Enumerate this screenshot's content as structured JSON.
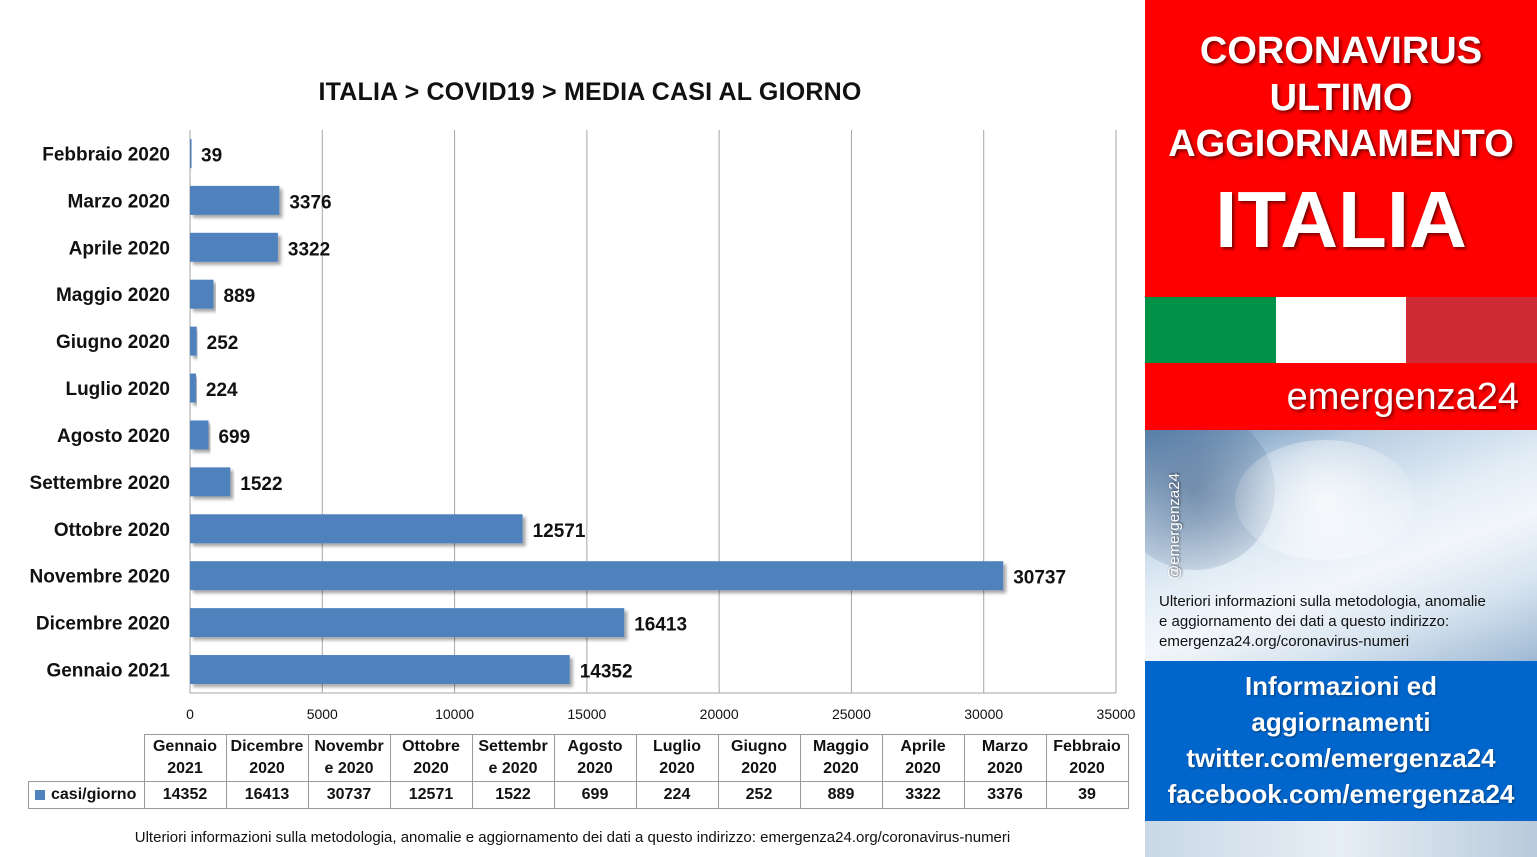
{
  "chart_data": {
    "type": "bar",
    "orientation": "horizontal",
    "title": "ITALIA >  COVID19 > MEDIA CASI AL GIORNO",
    "categories": [
      "Febbraio 2020",
      "Marzo 2020",
      "Aprile 2020",
      "Maggio 2020",
      "Giugno 2020",
      "Luglio 2020",
      "Agosto 2020",
      "Settembre 2020",
      "Ottobre 2020",
      "Novembre 2020",
      "Dicembre 2020",
      "Gennaio 2021"
    ],
    "series": [
      {
        "name": "casi/giorno",
        "values": [
          39,
          3376,
          3322,
          889,
          252,
          224,
          699,
          1522,
          12571,
          30737,
          16413,
          14352
        ]
      }
    ],
    "xlim": [
      0,
      35000
    ],
    "xticks": [
      0,
      5000,
      10000,
      15000,
      20000,
      25000,
      30000,
      35000
    ],
    "grid": "vertical",
    "bar_color": "#4f81bd",
    "data_table": {
      "headers": [
        [
          "Gennaio",
          "2021"
        ],
        [
          "Dicembre",
          "2020"
        ],
        [
          "Novembr",
          "e 2020"
        ],
        [
          "Ottobre",
          "2020"
        ],
        [
          "Settembr",
          "e 2020"
        ],
        [
          "Agosto",
          "2020"
        ],
        [
          "Luglio",
          "2020"
        ],
        [
          "Giugno",
          "2020"
        ],
        [
          "Maggio",
          "2020"
        ],
        [
          "Aprile",
          "2020"
        ],
        [
          "Marzo",
          "2020"
        ],
        [
          "Febbraio",
          "2020"
        ]
      ],
      "row_label": "casi/giorno",
      "values": [
        14352,
        16413,
        30737,
        12571,
        1522,
        699,
        224,
        252,
        889,
        3322,
        3376,
        39
      ]
    }
  },
  "footer_note": "Ulteriori informazioni sulla metodologia, anomalie e aggiornamento dei dati a questo indirizzo: emergenza24.org/coronavirus-numeri",
  "side_panel": {
    "banner_lines": [
      "CORONAVIRUS",
      "ULTIMO",
      "AGGIORNAMENTO",
      "ITALIA"
    ],
    "brand": "emergenza24",
    "handle": "@emergenza24",
    "note_lines": [
      "Ulteriori informazioni sulla metodologia, anomalie",
      "e aggiornamento dei dati a questo indirizzo:",
      "emergenza24.org/coronavirus-numeri"
    ],
    "info_lines": [
      "Informazioni ed",
      "aggiornamenti",
      "twitter.com/emergenza24",
      "facebook.com/emergenza24"
    ],
    "colors": {
      "red": "#ff0000",
      "flag_green": "#009246",
      "flag_white": "#ffffff",
      "flag_red": "#ce2b37",
      "blue": "#0066cc"
    }
  }
}
